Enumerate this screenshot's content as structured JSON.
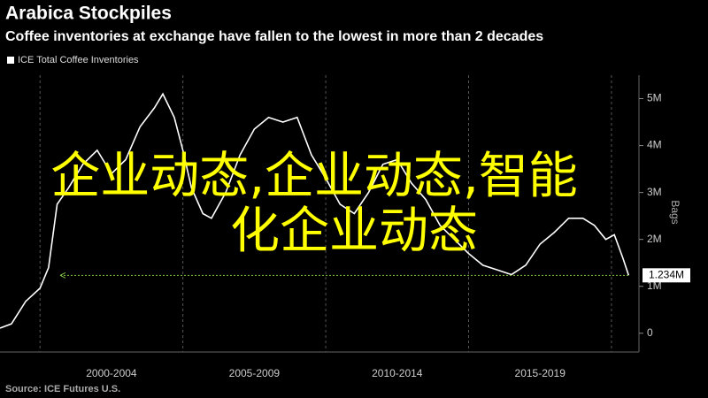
{
  "chart_data": {
    "type": "line",
    "title": "Arabica Stockpiles",
    "subtitle": "Coffee inventories at exchange have fallen to the lowest in more than 2 decades",
    "ylabel": "Bags",
    "source": "Source: ICE Futures U.S.",
    "overlay_text": [
      "企业动态,企业动态,智能",
      "化企业动态"
    ],
    "x": [
      1998.6,
      1999.0,
      1999.5,
      2000.0,
      2000.3,
      2000.6,
      2001.0,
      2001.5,
      2002.0,
      2002.5,
      2003.0,
      2003.5,
      2004.0,
      2004.3,
      2004.7,
      2005.0,
      2005.3,
      2005.7,
      2006.0,
      2006.5,
      2007.0,
      2007.5,
      2008.0,
      2008.5,
      2009.0,
      2009.5,
      2010.0,
      2010.5,
      2011.0,
      2011.5,
      2012.0,
      2012.5,
      2013.0,
      2013.5,
      2014.0,
      2014.5,
      2015.0,
      2015.5,
      2016.0,
      2016.5,
      2017.0,
      2017.5,
      2018.0,
      2018.5,
      2019.0,
      2019.4,
      2019.8,
      2020.1,
      2020.4,
      2020.6
    ],
    "series": [
      {
        "name": "ICE Total Coffee Inventories",
        "color": "#ffffff",
        "values": [
          0.11,
          0.2,
          0.68,
          0.96,
          1.4,
          2.75,
          3.1,
          3.6,
          3.9,
          3.4,
          3.7,
          4.4,
          4.8,
          5.1,
          4.6,
          3.9,
          3.1,
          2.55,
          2.45,
          3.0,
          3.8,
          4.35,
          4.6,
          4.5,
          4.6,
          3.8,
          3.3,
          2.75,
          2.55,
          3.0,
          3.6,
          3.7,
          3.2,
          2.85,
          2.3,
          2.0,
          1.7,
          1.45,
          1.35,
          1.25,
          1.45,
          1.9,
          2.15,
          2.45,
          2.45,
          2.3,
          2.0,
          2.1,
          1.6,
          1.234
        ]
      }
    ],
    "last_value": {
      "value": 1.234,
      "label": "1.234M",
      "color": "#7fc241"
    },
    "xlim": [
      1998.6,
      2020.9
    ],
    "xticks": [
      2000,
      2005,
      2010,
      2015,
      2020
    ],
    "x_labels": [
      {
        "value": 2002.5,
        "label": "2000-2004"
      },
      {
        "value": 2007.5,
        "label": "2005-2009"
      },
      {
        "value": 2012.5,
        "label": "2010-2014"
      },
      {
        "value": 2017.5,
        "label": "2015-2019"
      }
    ],
    "ylim": [
      -0.4,
      5.5
    ],
    "yticks": [
      {
        "value": 0,
        "label": "0"
      },
      {
        "value": 1,
        "label": "1M"
      },
      {
        "value": 2,
        "label": "2M"
      },
      {
        "value": 3,
        "label": "3M"
      },
      {
        "value": 4,
        "label": "4M"
      },
      {
        "value": 5,
        "label": "5M"
      }
    ],
    "grid": "x"
  }
}
